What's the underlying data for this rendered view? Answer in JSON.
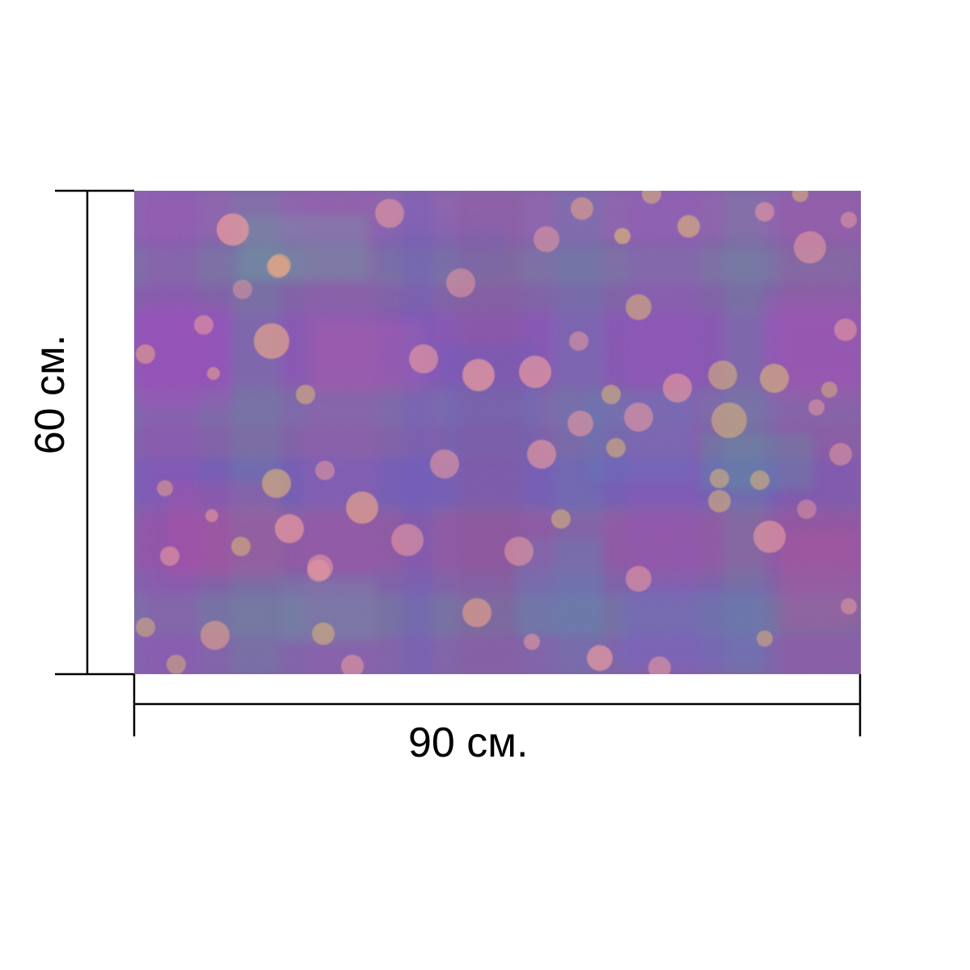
{
  "product": {
    "height_label": "60 см.",
    "width_label": "90 см."
  },
  "colors": {
    "lines": "#000000",
    "pattern_base": "#7a5aa8",
    "pattern_accents": [
      "#9b3fc4",
      "#5b4fd0",
      "#4f9a94",
      "#c04f95",
      "#8a4a8a"
    ],
    "bokeh_dots": [
      "#e6a28a",
      "#e89a9e",
      "#d9b07a",
      "#f0a8a0"
    ]
  }
}
